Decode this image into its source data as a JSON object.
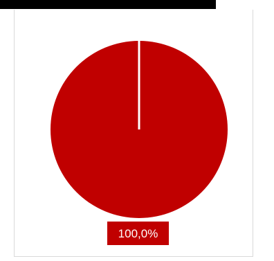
{
  "title_bar": {
    "text": ""
  },
  "chart_data": {
    "type": "pie",
    "categories": [
      ""
    ],
    "values": [
      100.0
    ],
    "data_labels": [
      "100,0%"
    ],
    "colors": [
      "#c00000"
    ],
    "label_text_color": "#ffffff",
    "title": "",
    "legend": "none"
  }
}
